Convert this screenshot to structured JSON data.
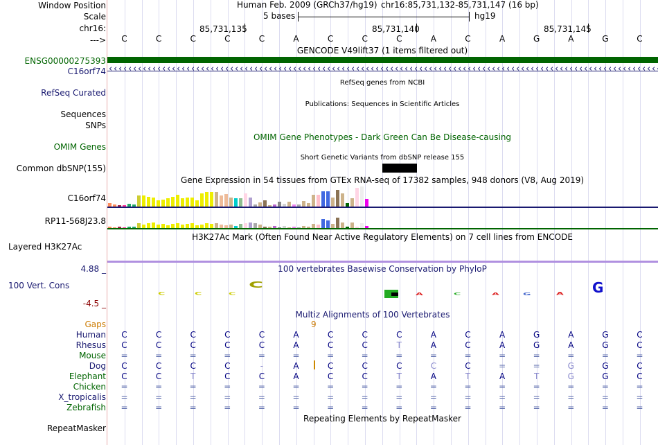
{
  "header": {
    "window_position_label": "Window Position",
    "scale_label": "Scale",
    "chrom_label": "chr16:",
    "strand_label": "--->",
    "assembly_title": "Human Feb. 2009 (GRCh37/hg19)",
    "position_range": "chr16:85,731,132-85,731,147 (16 bp)",
    "scale_text": "5 bases",
    "scale_db": "hg19",
    "tick_1": "85,731,135",
    "tick_2": "85,731,140",
    "tick_3": "85,731,145"
  },
  "sequence": [
    "C",
    "C",
    "C",
    "C",
    "C",
    "A",
    "C",
    "C",
    "C",
    "A",
    "C",
    "A",
    "G",
    "A",
    "G",
    "C"
  ],
  "tracks": {
    "gencode_title": "GENCODE V49lift37 (1 items filtered out)",
    "gencode_item": "ENSG00000275393",
    "gencode_gene": "C16orf74",
    "refseq_label": "RefSeq Curated",
    "refseq_title": "RefSeq genes from NCBI",
    "sequences_label": "Sequences",
    "publications_title": "Publications: Sequences in Scientific Articles",
    "snps_label": "SNPs",
    "omim_title": "OMIM Gene Phenotypes - Dark Green Can Be Disease-causing",
    "omim_label": "OMIM Genes",
    "dbsnp_title": "Short Genetic Variants from dbSNP release 155",
    "dbsnp_label": "Common dbSNP(155)",
    "gtex_title": "Gene Expression in 54 tissues from GTEx RNA-seq of 17382 samples, 948 donors (V8, Aug 2019)",
    "gtex_gene1": "C16orf74",
    "gtex_gene2": "RP11-568J23.8",
    "h3k27ac_title": "H3K27Ac Mark (Often Found Near Active Regulatory Elements) on 7 cell lines from ENCODE",
    "h3k27ac_label": "Layered H3K27Ac",
    "phylop_title": "100 vertebrates Basewise Conservation by PhyloP",
    "phylop_label": "100 Vert. Cons",
    "phylop_max": "4.88 _",
    "phylop_min": "-4.5 _",
    "multiz_title": "Multiz Alignments of 100 Vertebrates",
    "gaps_label": "Gaps",
    "gap_count": "9",
    "repeat_title": "Repeating Elements by RepeatMasker",
    "repeat_label": "RepeatMasker"
  },
  "alignment": [
    {
      "species": "Human",
      "bases": [
        "C",
        "C",
        "C",
        "C",
        "C",
        "A",
        "C",
        "C",
        "C",
        "A",
        "C",
        "A",
        "G",
        "A",
        "G",
        "C"
      ]
    },
    {
      "species": "Rhesus",
      "bases": [
        "C",
        "C",
        "C",
        "C",
        "C",
        "A",
        "C",
        "C",
        "T",
        "A",
        "C",
        "A",
        "G",
        "A",
        "G",
        "C"
      ]
    },
    {
      "species": "Mouse",
      "bases": [
        "=",
        "=",
        "=",
        "=",
        "=",
        "=",
        "=",
        "=",
        "=",
        "=",
        "=",
        "=",
        "=",
        "=",
        "=",
        "="
      ]
    },
    {
      "species": "Dog",
      "bases": [
        "C",
        "C",
        "C",
        "C",
        "-",
        "A",
        "C",
        "C",
        "C",
        "C",
        "C",
        "=",
        "=",
        "G",
        "G",
        "C"
      ]
    },
    {
      "species": "Elephant",
      "bases": [
        "C",
        "C",
        "T",
        "C",
        "C",
        "A",
        "C",
        "C",
        "T",
        "A",
        "T",
        "A",
        "T",
        "G",
        "G",
        "C"
      ]
    },
    {
      "species": "Chicken",
      "bases": [
        "=",
        "=",
        "=",
        "=",
        "=",
        "=",
        "=",
        "=",
        "=",
        "=",
        "=",
        "=",
        "=",
        "=",
        "=",
        "="
      ]
    },
    {
      "species": "X_tropicalis",
      "bases": [
        "=",
        "=",
        "=",
        "=",
        "=",
        "=",
        "=",
        "=",
        "=",
        "=",
        "=",
        "=",
        "=",
        "=",
        "=",
        "="
      ]
    },
    {
      "species": "Zebrafish",
      "bases": [
        "=",
        "=",
        "=",
        "=",
        "=",
        "=",
        "=",
        "=",
        "=",
        "=",
        "=",
        "=",
        "=",
        "=",
        "=",
        "="
      ]
    }
  ],
  "gtex_c16orf74_values": [
    6,
    4,
    3,
    3,
    5,
    4,
    17,
    17,
    15,
    14,
    10,
    11,
    13,
    15,
    18,
    13,
    14,
    14,
    10,
    20,
    22,
    22,
    22,
    17,
    19,
    14,
    13,
    13,
    20,
    14,
    4,
    7,
    10,
    3,
    4,
    8,
    5,
    8,
    4,
    4,
    9,
    6,
    18,
    18,
    23,
    23,
    14,
    25,
    20,
    6,
    13,
    28,
    30,
    12
  ],
  "gtex_rp11_values": [
    3,
    2,
    3,
    2,
    3,
    3,
    8,
    6,
    8,
    9,
    6,
    7,
    5,
    7,
    8,
    6,
    7,
    8,
    5,
    6,
    8,
    7,
    8,
    6,
    5,
    6,
    4,
    7,
    8,
    9,
    8,
    6,
    3,
    3,
    4,
    2,
    4,
    2,
    3,
    2,
    4,
    3,
    7,
    6,
    14,
    12,
    7,
    16,
    9,
    3,
    9,
    3,
    8,
    4
  ],
  "gtex_colors": [
    "#ff8c5a",
    "#ff8c5a",
    "#a8254a",
    "#ff3399",
    "#22aa66",
    "#22aa66",
    "#cdcd33",
    "#eeee00",
    "#eeee00",
    "#eeee00",
    "#eeee00",
    "#eeee00",
    "#eeee00",
    "#eeee00",
    "#eeee00",
    "#eeee00",
    "#eeee00",
    "#eeee00",
    "#eeee00",
    "#eeee00",
    "#eeee00",
    "#eeee00",
    "#cdb38b",
    "#eebb99",
    "#eebb99",
    "#cdb38b",
    "#00cdcd",
    "#8fbc8f",
    "#ffd5e5",
    "#b0a0d0",
    "#a9a9a9",
    "#cdb38b",
    "#8b7355",
    "#cdb38b",
    "#bb66cc",
    "#888888",
    "#d3d3d3",
    "#cdb38b",
    "#ee82ee",
    "#a9a9a9",
    "#cdb38b",
    "#cdb38b",
    "#cdb38b",
    "#ffc0cb",
    "#4169e1",
    "#4169e1",
    "#cdb38b",
    "#8b7355",
    "#cdb38b",
    "#006400",
    "#cdb38b",
    "#ffd5e5",
    "#eeeeee",
    "#ee00ee"
  ],
  "colors": {
    "gencode": "#006400",
    "gencode_label": "#006400",
    "gene_label": "#191970",
    "phylop_axis": "#191970",
    "phylop_neg": "#8b0000",
    "gaps": "#cc7a00",
    "human_seq": "#000080",
    "species": "#191970",
    "divider_gtex": "#191970",
    "divider_gtex2": "#006400",
    "divider_h3k27ac": "#9370db"
  }
}
